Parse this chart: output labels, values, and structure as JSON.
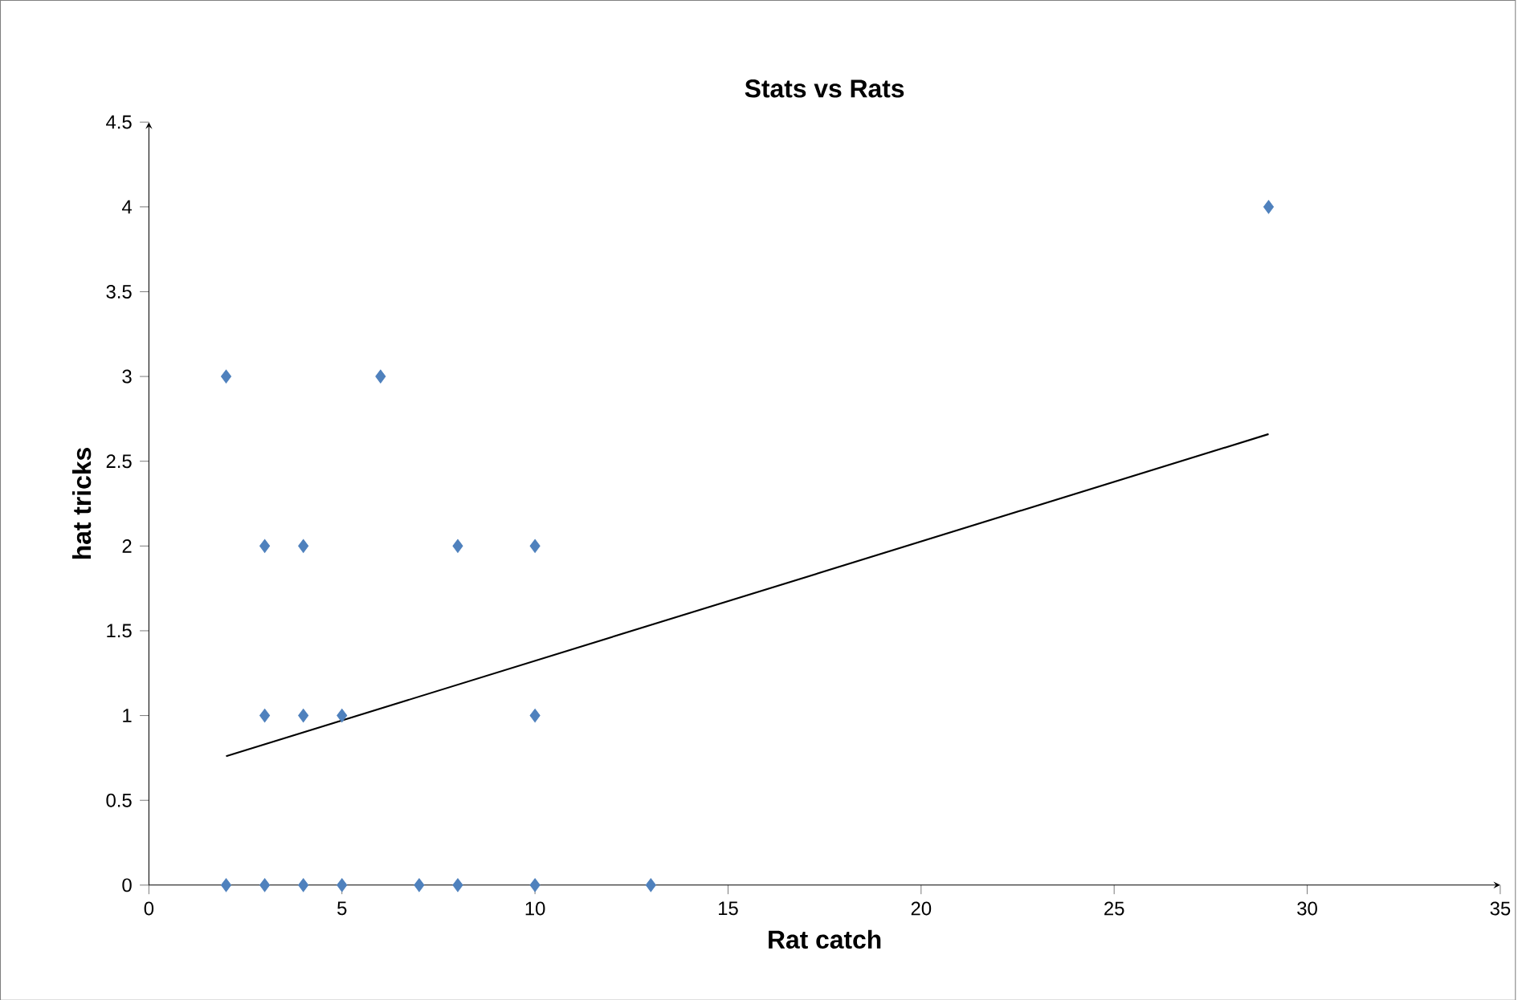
{
  "chart_data": {
    "type": "scatter",
    "title": "Stats vs Rats",
    "xlabel": "Rat catch",
    "ylabel": "hat tricks",
    "marker": "diamond",
    "grid": false,
    "xlim": [
      0,
      35
    ],
    "xticks": [
      0,
      5,
      10,
      15,
      20,
      25,
      30,
      35
    ],
    "ylim": [
      0,
      4.5
    ],
    "yticks": [
      0,
      0.5,
      1,
      1.5,
      2,
      2.5,
      3,
      3.5,
      4,
      4.5
    ],
    "series": [
      {
        "color": "#4f81bd",
        "x": [
          2,
          3,
          4,
          6,
          8,
          10,
          3,
          4,
          5,
          10,
          29,
          2,
          3,
          4,
          5,
          7,
          8,
          10,
          13
        ],
        "values": [
          3,
          2,
          2,
          3,
          2,
          2,
          1,
          1,
          1,
          1,
          4,
          0,
          0,
          0,
          0,
          0,
          0,
          0,
          0
        ]
      },
      {
        "type": "line",
        "marker": "none",
        "color": "#000000",
        "x": [
          2,
          29
        ],
        "values": [
          0.76,
          2.66
        ]
      }
    ]
  }
}
